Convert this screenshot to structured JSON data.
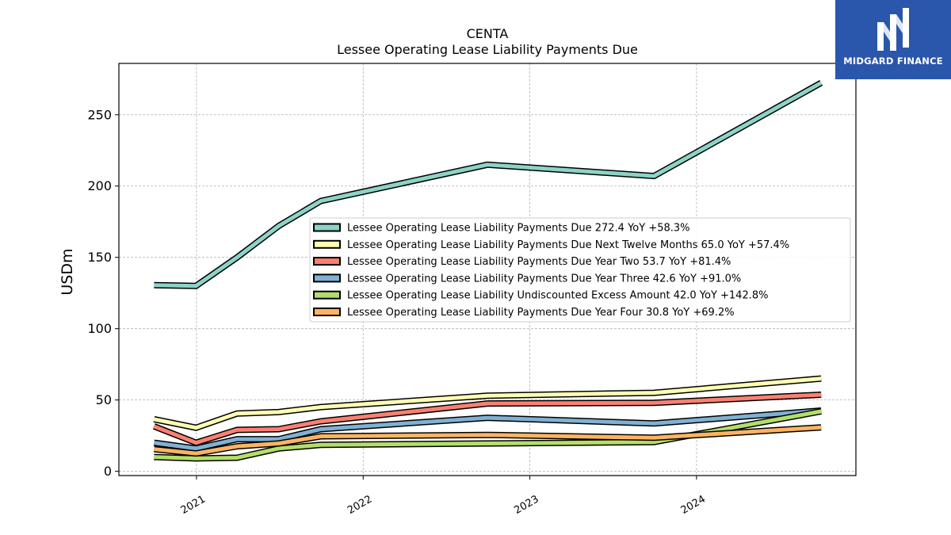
{
  "logo": {
    "text": "MIDGARD FINANCE",
    "icon": "midgard-logo-icon",
    "bg_color": "#2a56ab"
  },
  "chart_data": {
    "type": "line",
    "title": "CENTA",
    "subtitle": "Lessee Operating Lease Liability Payments Due",
    "ylabel": "USDm",
    "xlabel": "",
    "ylim": [
      -3,
      286
    ],
    "xlim": [
      "2020-07-15",
      "2024-12-15"
    ],
    "yticks": [
      0,
      50,
      100,
      150,
      200,
      250
    ],
    "xticks": [
      {
        "date": "2021-01-01",
        "label": "2021"
      },
      {
        "date": "2022-01-01",
        "label": "2022"
      },
      {
        "date": "2023-01-01",
        "label": "2023"
      },
      {
        "date": "2024-01-01",
        "label": "2024"
      }
    ],
    "grid": true,
    "legend_position": "center-right",
    "x": [
      "2020-09-30",
      "2020-12-31",
      "2021-03-31",
      "2021-06-30",
      "2021-09-30",
      "2022-09-30",
      "2023-09-30",
      "2024-09-30"
    ],
    "series": [
      {
        "name": "Lessee Operating Lease Liability Payments Due",
        "legend": "Lessee Operating Lease Liability Payments Due  272.4 YoY +58.3%",
        "color": "#8dd3c7",
        "values": [
          130.5,
          130.0,
          150.0,
          172.0,
          189.5,
          215.0,
          207.0,
          272.4
        ]
      },
      {
        "name": "Lessee Operating Lease Liability Payments Due Next Twelve Months",
        "legend": "Lessee Operating Lease Liability Payments Due Next Twelve Months  65.0 YoY +57.4%",
        "color": "#ffffb3",
        "values": [
          36.5,
          30.5,
          40.5,
          41.5,
          45.0,
          53.0,
          55.0,
          65.0
        ]
      },
      {
        "name": "Lessee Operating Lease Liability Payments Due Year Two",
        "legend": "Lessee Operating Lease Liability Payments Due Year Two  53.7 YoY +81.4%",
        "color": "#fb8072",
        "values": [
          31.5,
          20.0,
          29.0,
          29.5,
          35.0,
          47.5,
          48.0,
          53.7
        ]
      },
      {
        "name": "Lessee Operating Lease Liability Payments Due Year Three",
        "legend": "Lessee Operating Lease Liability Payments Due Year Three  42.6 YoY +91.0%",
        "color": "#80b1d3",
        "values": [
          20.0,
          16.0,
          22.5,
          22.5,
          29.5,
          37.5,
          33.5,
          42.6
        ]
      },
      {
        "name": "Lessee Operating Lease Liability Undiscounted Excess Amount",
        "legend": "Lessee Operating Lease Liability Undiscounted Excess Amount  42.0 YoY +142.8%",
        "color": "#b3de69",
        "values": [
          10.0,
          9.0,
          9.5,
          16.0,
          18.5,
          19.5,
          20.5,
          42.0
        ]
      },
      {
        "name": "Lessee Operating Lease Liability Payments Due Year Four",
        "legend": "Lessee Operating Lease Liability Payments Due Year Four  30.8 YoY +69.2%",
        "color": "#fdb462",
        "values": [
          15.5,
          12.5,
          17.5,
          19.5,
          24.5,
          25.5,
          23.5,
          30.8
        ]
      }
    ]
  }
}
